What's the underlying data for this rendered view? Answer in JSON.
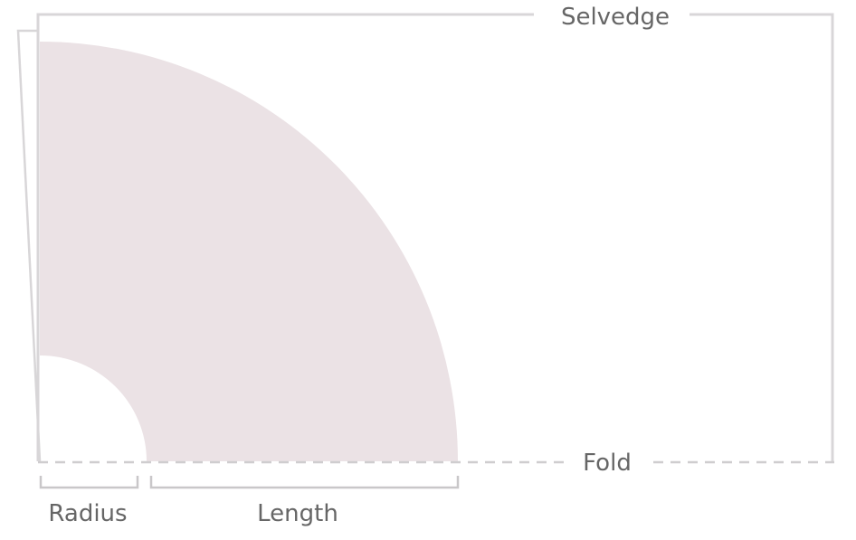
{
  "labels": {
    "selvedge": "Selvedge",
    "fold": "Fold",
    "radius": "Radius",
    "length": "Length"
  },
  "colors": {
    "fabric_outline": "#d8d6d8",
    "skirt_fill": "#ebe2e5",
    "dashed_fold": "#cfcdcf",
    "label_text": "#666666",
    "bracket": "#c9c7c9"
  }
}
